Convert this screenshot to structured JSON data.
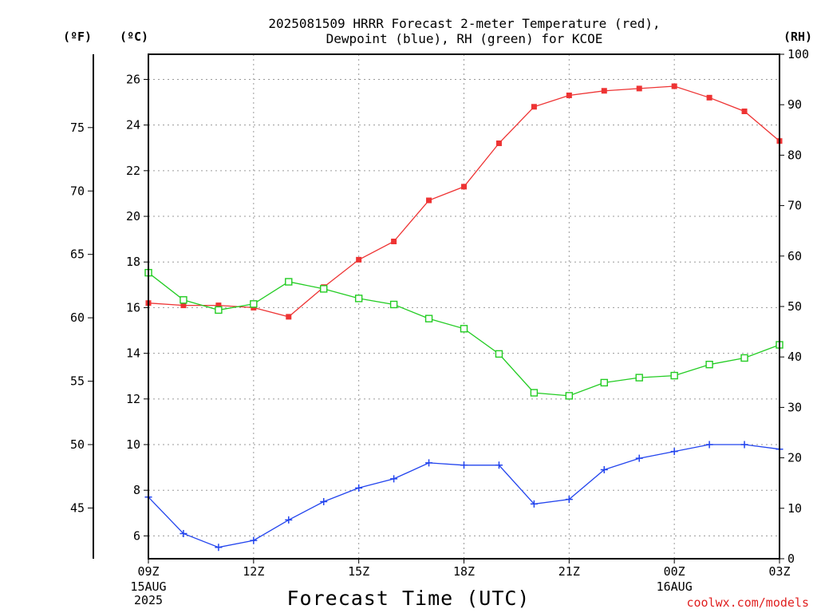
{
  "chart_data": {
    "type": "line",
    "title_lines": [
      "2025081509 HRRR Forecast 2-meter Temperature (red),",
      "Dewpoint (blue), RH (green) for KCOE"
    ],
    "unit_labels": {
      "fahrenheit": "(ºF)",
      "celsius": "(ºC)",
      "rh": "(RH)"
    },
    "xlabel": "Forecast Time (UTC)",
    "credit": "coolwx.com/models",
    "x_ticks": [
      {
        "hour": 0,
        "label": "09Z",
        "date_lines": [
          "15AUG",
          "2025"
        ]
      },
      {
        "hour": 3,
        "label": "12Z",
        "date_lines": []
      },
      {
        "hour": 6,
        "label": "15Z",
        "date_lines": []
      },
      {
        "hour": 9,
        "label": "18Z",
        "date_lines": []
      },
      {
        "hour": 12,
        "label": "21Z",
        "date_lines": []
      },
      {
        "hour": 15,
        "label": "00Z",
        "date_lines": [
          "16AUG"
        ]
      },
      {
        "hour": 18,
        "label": "03Z",
        "date_lines": []
      }
    ],
    "xlim": [
      0,
      18
    ],
    "celsius_axis": {
      "ylim": [
        5,
        27.1
      ],
      "ticks": [
        6,
        8,
        10,
        12,
        14,
        16,
        18,
        20,
        22,
        24,
        26
      ]
    },
    "fahrenheit_axis": {
      "ticks": [
        45,
        50,
        55,
        60,
        65,
        70,
        75
      ]
    },
    "rh_axis": {
      "ylim": [
        0,
        100
      ],
      "ticks": [
        0,
        10,
        20,
        30,
        40,
        50,
        60,
        70,
        80,
        90,
        100
      ]
    },
    "grid": true,
    "x": [
      "09Z",
      "10Z",
      "11Z",
      "12Z",
      "13Z",
      "14Z",
      "15Z",
      "16Z",
      "17Z",
      "18Z",
      "19Z",
      "20Z",
      "21Z",
      "22Z",
      "23Z",
      "00Z",
      "01Z",
      "02Z",
      "03Z"
    ],
    "series": [
      {
        "name": "Temperature",
        "axis": "celsius",
        "color": "#ee3333",
        "marker": "filled-square",
        "values": [
          16.2,
          16.1,
          16.1,
          16.0,
          15.6,
          16.9,
          18.1,
          18.9,
          20.7,
          21.3,
          23.2,
          24.8,
          25.3,
          25.5,
          25.6,
          25.7,
          25.2,
          24.6,
          23.3
        ]
      },
      {
        "name": "Dewpoint",
        "axis": "celsius",
        "color": "#2244ee",
        "marker": "plus",
        "values": [
          7.7,
          6.1,
          5.5,
          5.8,
          6.7,
          7.5,
          8.1,
          8.5,
          9.2,
          9.1,
          9.1,
          7.4,
          7.6,
          8.9,
          9.4,
          9.7,
          10.0,
          10.0,
          9.8
        ]
      },
      {
        "name": "RH",
        "axis": "rh",
        "color": "#22cc22",
        "marker": "open-square",
        "values": [
          56.7,
          51.3,
          49.3,
          50.5,
          54.9,
          53.5,
          51.6,
          50.4,
          47.6,
          45.6,
          40.6,
          32.9,
          32.3,
          34.9,
          35.9,
          36.3,
          38.5,
          39.8,
          42.4
        ]
      }
    ]
  }
}
